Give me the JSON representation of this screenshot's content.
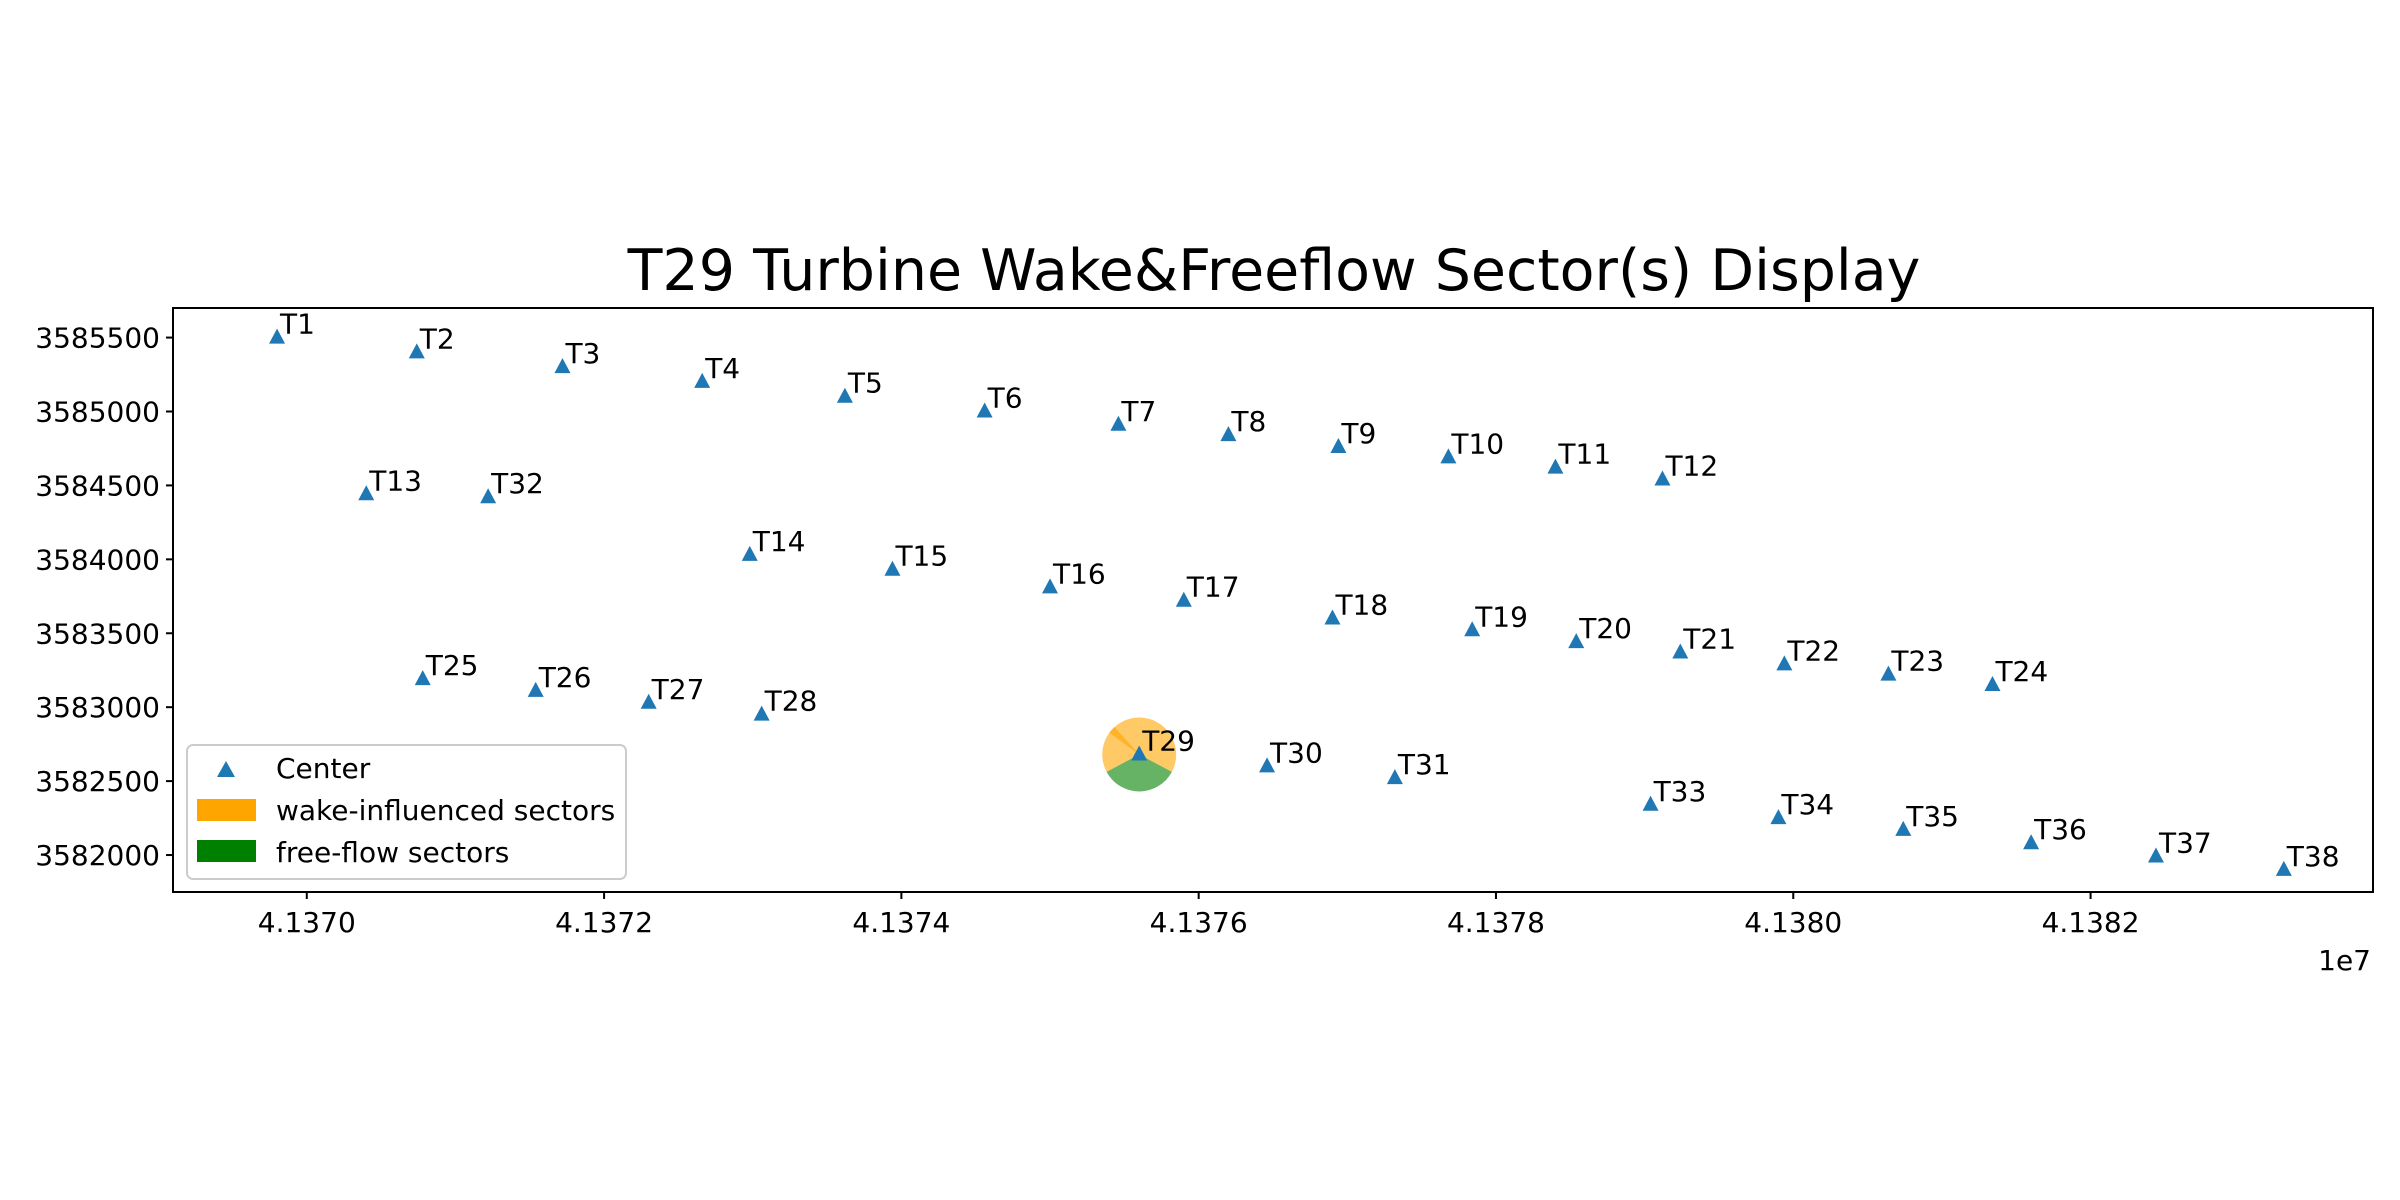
{
  "chart_data": {
    "type": "scatter",
    "title": "T29 Turbine Wake&Freeflow Sector(s) Display",
    "xlabel": "",
    "ylabel": "",
    "x_offset_label": "1e7",
    "xlim": [
      41369.1,
      41383.9
    ],
    "ylim": [
      3581750,
      3585700
    ],
    "x_ticks": [
      41370,
      41372,
      41374,
      41376,
      41378,
      41380,
      41382
    ],
    "x_tick_labels": [
      "4.1370",
      "4.1372",
      "4.1374",
      "4.1376",
      "4.1378",
      "4.1380",
      "4.1382"
    ],
    "y_ticks": [
      3582000,
      3582500,
      3583000,
      3583500,
      3584000,
      3584500,
      3585000,
      3585500
    ],
    "y_tick_labels": [
      "3582000",
      "3582500",
      "3583000",
      "3583500",
      "3584000",
      "3584500",
      "3585000",
      "3585500"
    ],
    "grid": false,
    "legend_placement": "lower-left",
    "legend": [
      {
        "label": "Center",
        "marker": "triangle",
        "color": "#1f77b4"
      },
      {
        "label": "wake-influenced sectors",
        "marker": "patch",
        "color": "#ffa500"
      },
      {
        "label": "free-flow sectors",
        "marker": "patch",
        "color": "#008000"
      }
    ],
    "colors": {
      "center": "#1f77b4",
      "wake": "#ffa500",
      "free": "#008000"
    },
    "points": [
      {
        "label": "T1",
        "x": 41369.8,
        "y": 3585500
      },
      {
        "label": "T2",
        "x": 41370.74,
        "y": 3585400
      },
      {
        "label": "T3",
        "x": 41371.72,
        "y": 3585300
      },
      {
        "label": "T4",
        "x": 41372.66,
        "y": 3585200
      },
      {
        "label": "T5",
        "x": 41373.62,
        "y": 3585100
      },
      {
        "label": "T6",
        "x": 41374.56,
        "y": 3585000
      },
      {
        "label": "T7",
        "x": 41375.46,
        "y": 3584910
      },
      {
        "label": "T8",
        "x": 41376.2,
        "y": 3584840
      },
      {
        "label": "T9",
        "x": 41376.94,
        "y": 3584760
      },
      {
        "label": "T10",
        "x": 41377.68,
        "y": 3584690
      },
      {
        "label": "T11",
        "x": 41378.4,
        "y": 3584620
      },
      {
        "label": "T12",
        "x": 41379.12,
        "y": 3584540
      },
      {
        "label": "T13",
        "x": 41370.4,
        "y": 3584440
      },
      {
        "label": "T32",
        "x": 41371.22,
        "y": 3584420
      },
      {
        "label": "T14",
        "x": 41372.98,
        "y": 3584030
      },
      {
        "label": "T15",
        "x": 41373.94,
        "y": 3583930
      },
      {
        "label": "T16",
        "x": 41375.0,
        "y": 3583810
      },
      {
        "label": "T17",
        "x": 41375.9,
        "y": 3583720
      },
      {
        "label": "T18",
        "x": 41376.9,
        "y": 3583600
      },
      {
        "label": "T19",
        "x": 41377.84,
        "y": 3583520
      },
      {
        "label": "T20",
        "x": 41378.54,
        "y": 3583440
      },
      {
        "label": "T21",
        "x": 41379.24,
        "y": 3583370
      },
      {
        "label": "T22",
        "x": 41379.94,
        "y": 3583290
      },
      {
        "label": "T23",
        "x": 41380.64,
        "y": 3583220
      },
      {
        "label": "T24",
        "x": 41381.34,
        "y": 3583150
      },
      {
        "label": "T25",
        "x": 41370.78,
        "y": 3583190
      },
      {
        "label": "T26",
        "x": 41371.54,
        "y": 3583110
      },
      {
        "label": "T27",
        "x": 41372.3,
        "y": 3583030
      },
      {
        "label": "T28",
        "x": 41373.06,
        "y": 3582950
      },
      {
        "label": "T29",
        "x": 41375.6,
        "y": 3582680
      },
      {
        "label": "T30",
        "x": 41376.46,
        "y": 3582600
      },
      {
        "label": "T31",
        "x": 41377.32,
        "y": 3582520
      },
      {
        "label": "T33",
        "x": 41379.04,
        "y": 3582340
      },
      {
        "label": "T34",
        "x": 41379.9,
        "y": 3582250
      },
      {
        "label": "T35",
        "x": 41380.74,
        "y": 3582170
      },
      {
        "label": "T36",
        "x": 41381.6,
        "y": 3582080
      },
      {
        "label": "T37",
        "x": 41382.44,
        "y": 3581990
      },
      {
        "label": "T38",
        "x": 41383.3,
        "y": 3581900
      }
    ],
    "sectors": {
      "turbine": "T29",
      "center_x": 41375.6,
      "center_y": 3582680,
      "radius": 250,
      "wake": [
        [
          0,
          8
        ],
        [
          -54,
          0
        ],
        [
          8,
          118
        ],
        [
          242,
          318
        ]
      ],
      "free": [
        [
          118,
          242
        ]
      ]
    }
  }
}
